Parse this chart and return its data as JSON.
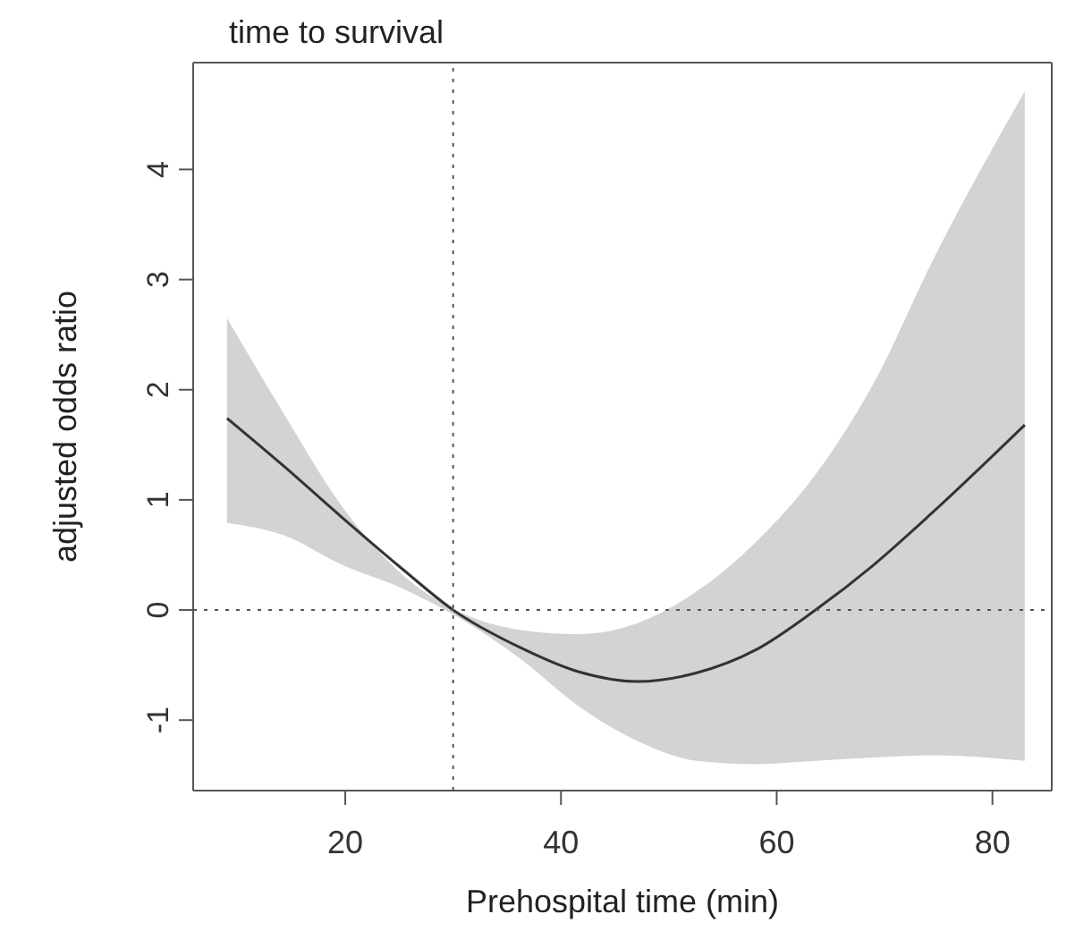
{
  "chart_data": {
    "type": "line",
    "title": "time to survival",
    "xlabel": "Prehospital time (min)",
    "ylabel": "adjusted odds ratio",
    "x": [
      9.04,
      14.25,
      19.7,
      25.2,
      30,
      36.2,
      41.6,
      47.1,
      52.6,
      58.1,
      63.6,
      69,
      74.5,
      83
    ],
    "series": [
      {
        "color": "#333333",
        "values": [
          1.74,
          1.31,
          0.84,
          0.38,
          0,
          -0.34,
          -0.56,
          -0.65,
          -0.57,
          -0.36,
          0,
          0.41,
          0.89,
          1.68
        ],
        "lower": [
          0.79,
          0.68,
          0.41,
          0.2,
          -0.04,
          -0.44,
          -0.87,
          -1.19,
          -1.37,
          -1.4,
          -1.37,
          -1.34,
          -1.32,
          -1.37
        ],
        "upper": [
          2.65,
          1.79,
          0.94,
          0.33,
          0.01,
          -0.18,
          -0.22,
          -0.12,
          0.17,
          0.62,
          1.23,
          2.06,
          3.18,
          4.71
        ]
      }
    ],
    "xlim": [
      5.9,
      85.5
    ],
    "ylim": [
      -1.64,
      4.97
    ],
    "xticks": [
      20,
      40,
      60,
      80
    ],
    "yticks": [
      -1,
      0,
      1,
      2,
      3,
      4
    ],
    "ref_lines": [
      {
        "axis": "x",
        "value": 30,
        "line_style": "dotted"
      },
      {
        "axis": "y",
        "value": 0,
        "line_style": "dotted"
      }
    ],
    "grid": false,
    "legend": false,
    "marker": "none",
    "line_style": "solid"
  }
}
